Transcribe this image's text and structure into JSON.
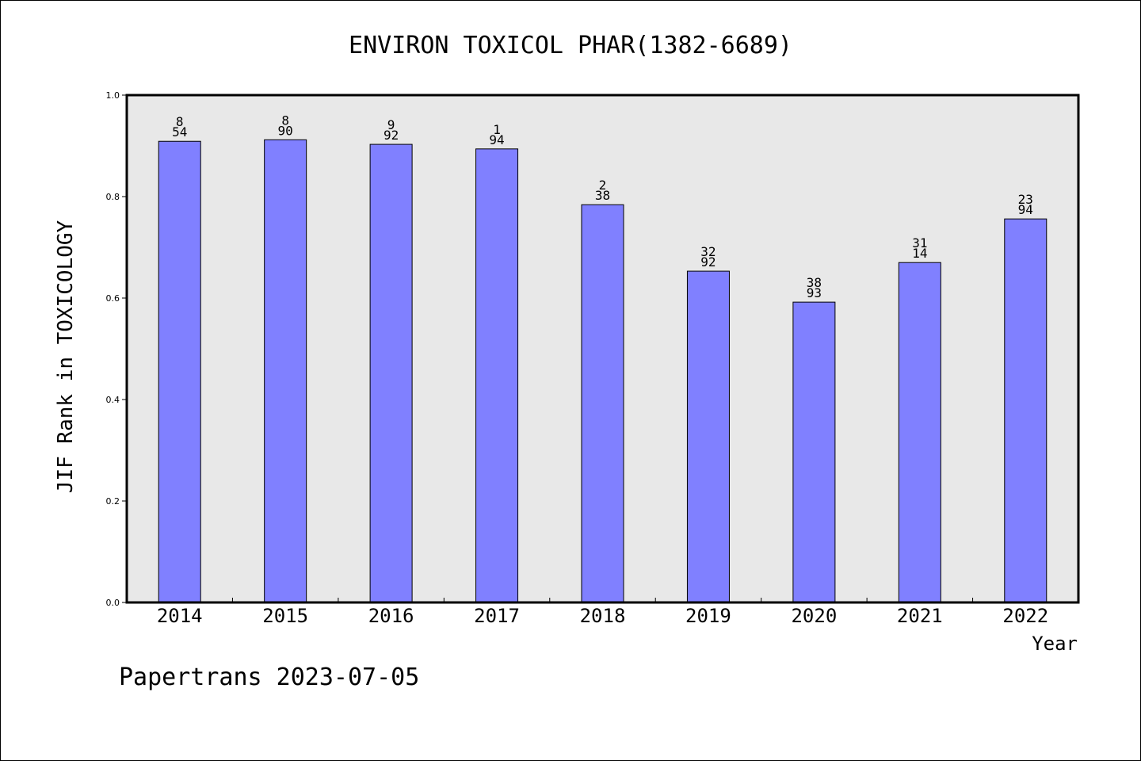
{
  "footer": "Papertrans 2023-07-05",
  "chart_data": {
    "type": "bar",
    "title": "ENVIRON TOXICOL PHAR(1382-6689)",
    "xlabel": "Year",
    "ylabel": "JIF Rank in TOXICOLOGY",
    "ylim": [
      0,
      1.0
    ],
    "yticks": [
      "0.0",
      "0.2",
      "0.4",
      "0.6",
      "0.8",
      "1.0"
    ],
    "grid": false,
    "categories": [
      "2014",
      "2015",
      "2016",
      "2017",
      "2018",
      "2019",
      "2020",
      "2021",
      "2022"
    ],
    "values": [
      0.909,
      0.912,
      0.903,
      0.894,
      0.784,
      0.653,
      0.592,
      0.67,
      0.756
    ],
    "labels": [
      [
        "8",
        "54"
      ],
      [
        "8",
        "90"
      ],
      [
        "9",
        "92"
      ],
      [
        "1",
        "94"
      ],
      [
        "2",
        "38"
      ],
      [
        "32",
        "92"
      ],
      [
        "38",
        "93"
      ],
      [
        "31",
        "14"
      ],
      [
        "23",
        "94"
      ]
    ],
    "bar_color": "#8080ff",
    "plot_background": "#e8e8e8"
  }
}
